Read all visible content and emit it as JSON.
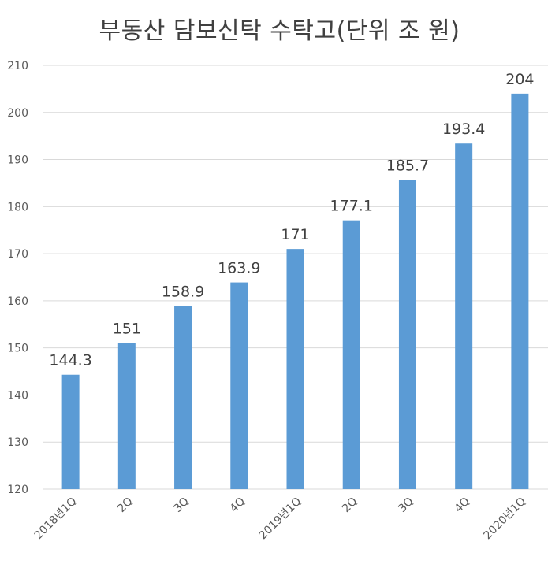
{
  "chart_data": {
    "type": "bar",
    "title": "부동산 담보신탁 수탁고(단위 조 원)",
    "categories": [
      "2018년1Q",
      "2Q",
      "3Q",
      "4Q",
      "2019년1Q",
      "2Q",
      "3Q",
      "4Q",
      "2020년1Q"
    ],
    "values": [
      144.3,
      151,
      158.9,
      163.9,
      171,
      177.1,
      185.7,
      193.4,
      204
    ],
    "value_labels": [
      "144.3",
      "151",
      "158.9",
      "163.9",
      "171",
      "177.1",
      "185.7",
      "193.4",
      "204"
    ],
    "ylim": [
      120,
      210
    ],
    "yticks": [
      120,
      130,
      140,
      150,
      160,
      170,
      180,
      190,
      200,
      210
    ],
    "grid": true,
    "legend": "none",
    "bar_color": "#5b9bd5",
    "grid_color": "#d9d9d9"
  }
}
